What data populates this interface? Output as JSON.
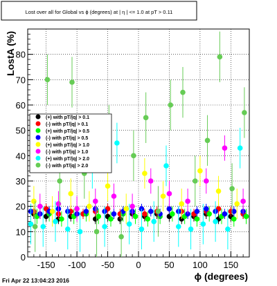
{
  "chart_data": {
    "type": "scatter",
    "title": "Lost over all for Global vs ϕ (degrees) at | η | <= 1.0 at pT > 0.11",
    "xlabel": "ϕ (degrees)",
    "ylabel": "LostA (%)",
    "xlim": [
      -180,
      180
    ],
    "ylim": [
      0,
      90
    ],
    "x_ticks": [
      -150,
      -100,
      -50,
      0,
      50,
      100,
      150
    ],
    "y_ticks": [
      0,
      10,
      20,
      30,
      40,
      50,
      60,
      70,
      80
    ],
    "grid": true,
    "legend_position": "left-middle",
    "legend": [
      {
        "label": "(+) with pT/|q| > 0.1",
        "color": "#000000"
      },
      {
        "label": "(-) with pT/|q| > 0.1",
        "color": "#ff0000"
      },
      {
        "label": "(+) with pT/|q| > 0.5",
        "color": "#00ff00"
      },
      {
        "label": "(-) with pT/|q| > 0.5",
        "color": "#0000ff"
      },
      {
        "label": "(+) with pT/|q| > 1.0",
        "color": "#ffff00"
      },
      {
        "label": "(-) with pT/|q| > 1.0",
        "color": "#ff00ff"
      },
      {
        "label": "(+) with pT/|q| > 2.0",
        "color": "#00ffff"
      },
      {
        "label": "(-) with pT/|q| > 2.0",
        "color": "#66cc55"
      }
    ],
    "series": [
      {
        "name": "(+) with pT/|q| > 0.1",
        "color": "#000000",
        "x": [
          -170,
          -150,
          -130,
          -110,
          -90,
          -70,
          -50,
          -30,
          -10,
          10,
          30,
          50,
          70,
          90,
          110,
          130,
          150,
          170
        ],
        "y": [
          17,
          16,
          15,
          16,
          17,
          15,
          16,
          15,
          17,
          16,
          17,
          16,
          15,
          16,
          17,
          15,
          16,
          17
        ],
        "err": [
          2,
          2,
          2,
          2,
          2,
          2,
          2,
          2,
          2,
          2,
          2,
          2,
          2,
          2,
          2,
          2,
          2,
          2
        ]
      },
      {
        "name": "(-) with pT/|q| > 0.1",
        "color": "#ff0000",
        "x": [
          -170,
          -150,
          -130,
          -110,
          -90,
          -70,
          -50,
          -30,
          -10,
          10,
          30,
          50,
          70,
          90,
          110,
          130,
          150,
          170
        ],
        "y": [
          18,
          19,
          17,
          18,
          17,
          18,
          19,
          17,
          18,
          17,
          18,
          19,
          18,
          17,
          18,
          19,
          18,
          17
        ],
        "err": [
          2,
          2,
          2,
          2,
          2,
          2,
          2,
          2,
          2,
          2,
          2,
          2,
          2,
          2,
          2,
          2,
          2,
          2
        ]
      },
      {
        "name": "(+) with pT/|q| > 0.5",
        "color": "#00ff00",
        "x": [
          -165,
          -145,
          -125,
          -105,
          -85,
          -65,
          -45,
          -25,
          -5,
          15,
          35,
          55,
          75,
          95,
          115,
          135,
          155,
          175
        ],
        "y": [
          16,
          17,
          15,
          16,
          17,
          16,
          15,
          17,
          16,
          15,
          16,
          17,
          16,
          15,
          17,
          16,
          15,
          16
        ],
        "err": [
          3,
          3,
          3,
          3,
          3,
          3,
          3,
          3,
          3,
          3,
          3,
          3,
          3,
          3,
          3,
          3,
          3,
          3
        ]
      },
      {
        "name": "(-) with pT/|q| > 0.5",
        "color": "#0000ff",
        "x": [
          -175,
          -160,
          -145,
          -130,
          -115,
          -100,
          -85,
          -70,
          -55,
          -40,
          -25,
          -10,
          5,
          20,
          35,
          50,
          65,
          80,
          95,
          110,
          125,
          140,
          155,
          170
        ],
        "y": [
          18,
          17,
          18,
          19,
          18,
          17,
          18,
          19,
          18,
          17,
          18,
          18,
          19,
          18,
          17,
          19,
          18,
          17,
          18,
          19,
          18,
          17,
          18,
          18
        ],
        "err": [
          2,
          2,
          2,
          2,
          2,
          2,
          2,
          2,
          2,
          2,
          2,
          2,
          2,
          2,
          2,
          2,
          2,
          2,
          2,
          2,
          2,
          2,
          2,
          2
        ]
      },
      {
        "name": "(+) with pT/|q| > 1.0",
        "color": "#ffff00",
        "x": [
          -170,
          -140,
          -110,
          -80,
          -50,
          -20,
          10,
          40,
          70,
          100,
          130,
          160
        ],
        "y": [
          22,
          18,
          25,
          20,
          28,
          19,
          33,
          24,
          21,
          34,
          26,
          21
        ],
        "err": [
          6,
          6,
          6,
          6,
          6,
          6,
          6,
          6,
          6,
          6,
          6,
          6
        ]
      },
      {
        "name": "(-) with pT/|q| > 1.0",
        "color": "#ff00ff",
        "x": [
          -160,
          -130,
          -100,
          -70,
          -40,
          -10,
          20,
          50,
          80,
          110,
          140,
          170
        ],
        "y": [
          20,
          21,
          19,
          22,
          24,
          20,
          30,
          25,
          22,
          30,
          43,
          22
        ],
        "err": [
          5,
          5,
          5,
          5,
          5,
          5,
          5,
          5,
          5,
          5,
          5,
          5
        ]
      },
      {
        "name": "(+) with pT/|q| > 2.0",
        "color": "#00ffff",
        "x": [
          -175,
          -155,
          -135,
          -115,
          -95,
          -75,
          -55,
          -35,
          -15,
          5,
          25,
          45,
          65,
          85,
          105,
          125,
          145,
          165
        ],
        "y": [
          13,
          12,
          14,
          11,
          10,
          35,
          12,
          45,
          13,
          11,
          14,
          36,
          12,
          11,
          13,
          14,
          11,
          43
        ],
        "err": [
          8,
          8,
          8,
          8,
          8,
          8,
          8,
          8,
          8,
          8,
          8,
          8,
          8,
          8,
          8,
          8,
          8,
          8
        ]
      },
      {
        "name": "(-) with pT/|q| > 2.0",
        "color": "#66cc55",
        "x": [
          -168,
          -148,
          -128,
          -108,
          -88,
          -68,
          -48,
          -28,
          -8,
          12,
          32,
          52,
          72,
          92,
          112,
          132,
          152,
          172
        ],
        "y": [
          12,
          70,
          30,
          69,
          33,
          10,
          50,
          8,
          40,
          55,
          18,
          60,
          65,
          30,
          46,
          79,
          27,
          57
        ],
        "err": [
          10,
          10,
          10,
          10,
          10,
          10,
          10,
          10,
          10,
          10,
          10,
          10,
          10,
          10,
          10,
          10,
          10,
          10
        ]
      }
    ]
  },
  "footer": {
    "timestamp": "Fri Apr 22 13:04:23 2016"
  }
}
